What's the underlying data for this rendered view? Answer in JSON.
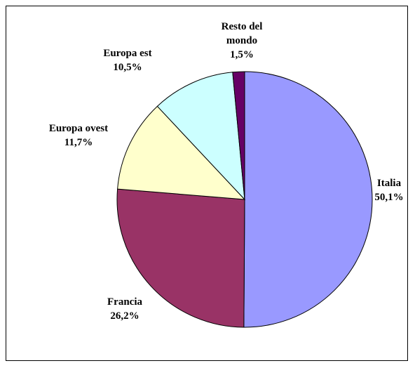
{
  "chart_data": {
    "type": "pie",
    "categories": [
      "Italia",
      "Francia",
      "Europa ovest",
      "Europa est",
      "Resto del mondo"
    ],
    "values": [
      50.1,
      26.2,
      11.7,
      10.5,
      1.5
    ],
    "value_labels": [
      "50,1%",
      "26,2%",
      "11,7%",
      "10,5%",
      "1,5%"
    ],
    "colors": [
      "#9999ff",
      "#993366",
      "#ffffcc",
      "#ccffff",
      "#660066"
    ]
  }
}
